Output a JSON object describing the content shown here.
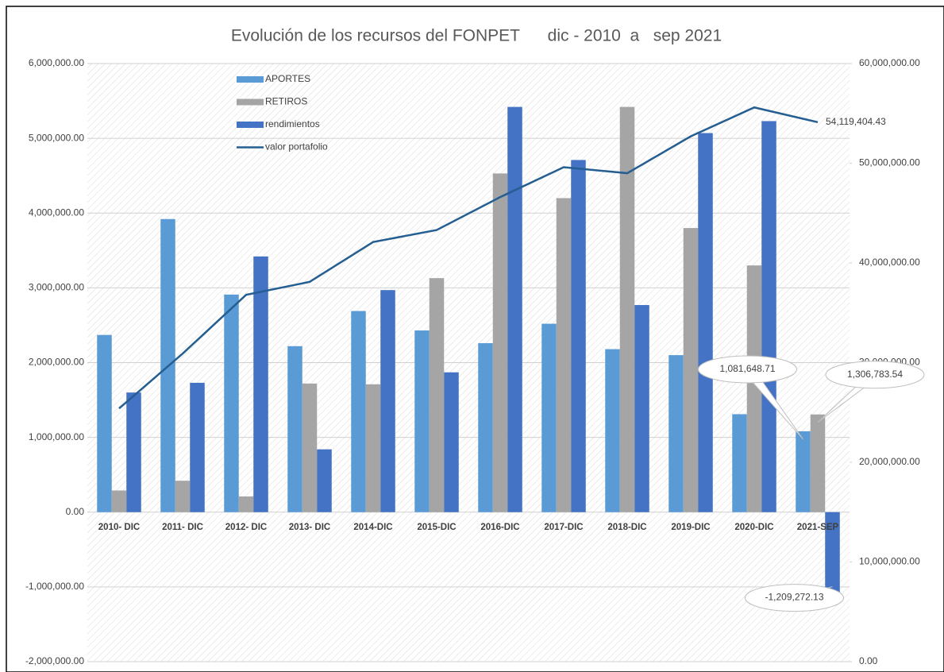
{
  "chart_data": {
    "type": "bar",
    "title": "Evolución de los recursos del FONPET      dic - 2010  a   sep 2021",
    "categories": [
      "2010- DIC",
      "2011- DIC",
      "2012- DIC",
      "2013- DIC",
      "2014-DIC",
      "2015-DIC",
      "2016-DIC",
      "2017-DIC",
      "2018-DIC",
      "2019-DIC",
      "2020-DIC",
      "2021-SEP"
    ],
    "series": [
      {
        "name": "APORTES",
        "color": "#5b9bd5",
        "values": [
          2370000,
          3920000,
          2910000,
          2220000,
          2690000,
          2430000,
          2260000,
          2520000,
          2180000,
          2100000,
          1310000,
          1081648.71
        ],
        "value_labels": [
          null,
          null,
          null,
          null,
          null,
          null,
          null,
          null,
          null,
          null,
          null,
          "1,081,648.71"
        ]
      },
      {
        "name": "RETIROS",
        "color": "#a5a5a5",
        "values": [
          290000,
          420000,
          210000,
          1720000,
          1710000,
          3130000,
          4530000,
          4200000,
          5420000,
          3800000,
          3300000,
          1306783.54
        ],
        "value_labels": [
          null,
          null,
          null,
          null,
          null,
          null,
          null,
          null,
          null,
          null,
          null,
          "1,306,783.54"
        ]
      },
      {
        "name": "rendimientos",
        "color": "#4472c4",
        "values": [
          1600000,
          1730000,
          3420000,
          840000,
          2970000,
          1870000,
          5420000,
          4710000,
          2770000,
          5070000,
          5230000,
          -1209272.13
        ],
        "value_labels": [
          null,
          null,
          null,
          null,
          null,
          null,
          null,
          null,
          null,
          null,
          null,
          "-1,209,272.13"
        ]
      },
      {
        "name": "valor portafolio",
        "color": "#255e91",
        "type": "line",
        "axis": "y2",
        "values": [
          25400000,
          30900000,
          36800000,
          38100000,
          42100000,
          43300000,
          46600000,
          49600000,
          49000000,
          52700000,
          55600000,
          54119404.43
        ],
        "value_labels": [
          null,
          null,
          null,
          null,
          null,
          null,
          null,
          null,
          null,
          null,
          null,
          "54,119,404.43"
        ]
      }
    ],
    "ylim": [
      -2000000,
      6000000
    ],
    "yticks": [
      {
        "value": -2000000,
        "label": "-2,000,000.00"
      },
      {
        "value": -1000000,
        "label": "-1,000,000.00"
      },
      {
        "value": 0,
        "label": "0.00"
      },
      {
        "value": 1000000,
        "label": "1,000,000.00"
      },
      {
        "value": 2000000,
        "label": "2,000,000.00"
      },
      {
        "value": 3000000,
        "label": "3,000,000.00"
      },
      {
        "value": 4000000,
        "label": "4,000,000.00"
      },
      {
        "value": 5000000,
        "label": "5,000,000.00"
      },
      {
        "value": 6000000,
        "label": "6,000,000.00"
      }
    ],
    "y2lim": [
      0,
      60000000
    ],
    "y2ticks": [
      {
        "value": 0,
        "label": "0.00"
      },
      {
        "value": 10000000,
        "label": "10,000,000.00"
      },
      {
        "value": 20000000,
        "label": "20,000,000.00"
      },
      {
        "value": 30000000,
        "label": "30,000,000.00"
      },
      {
        "value": 40000000,
        "label": "40,000,000.00"
      },
      {
        "value": 50000000,
        "label": "50,000,000.00"
      },
      {
        "value": 60000000,
        "label": "60,000,000.00"
      }
    ],
    "grid": true,
    "legend": "top-left"
  }
}
